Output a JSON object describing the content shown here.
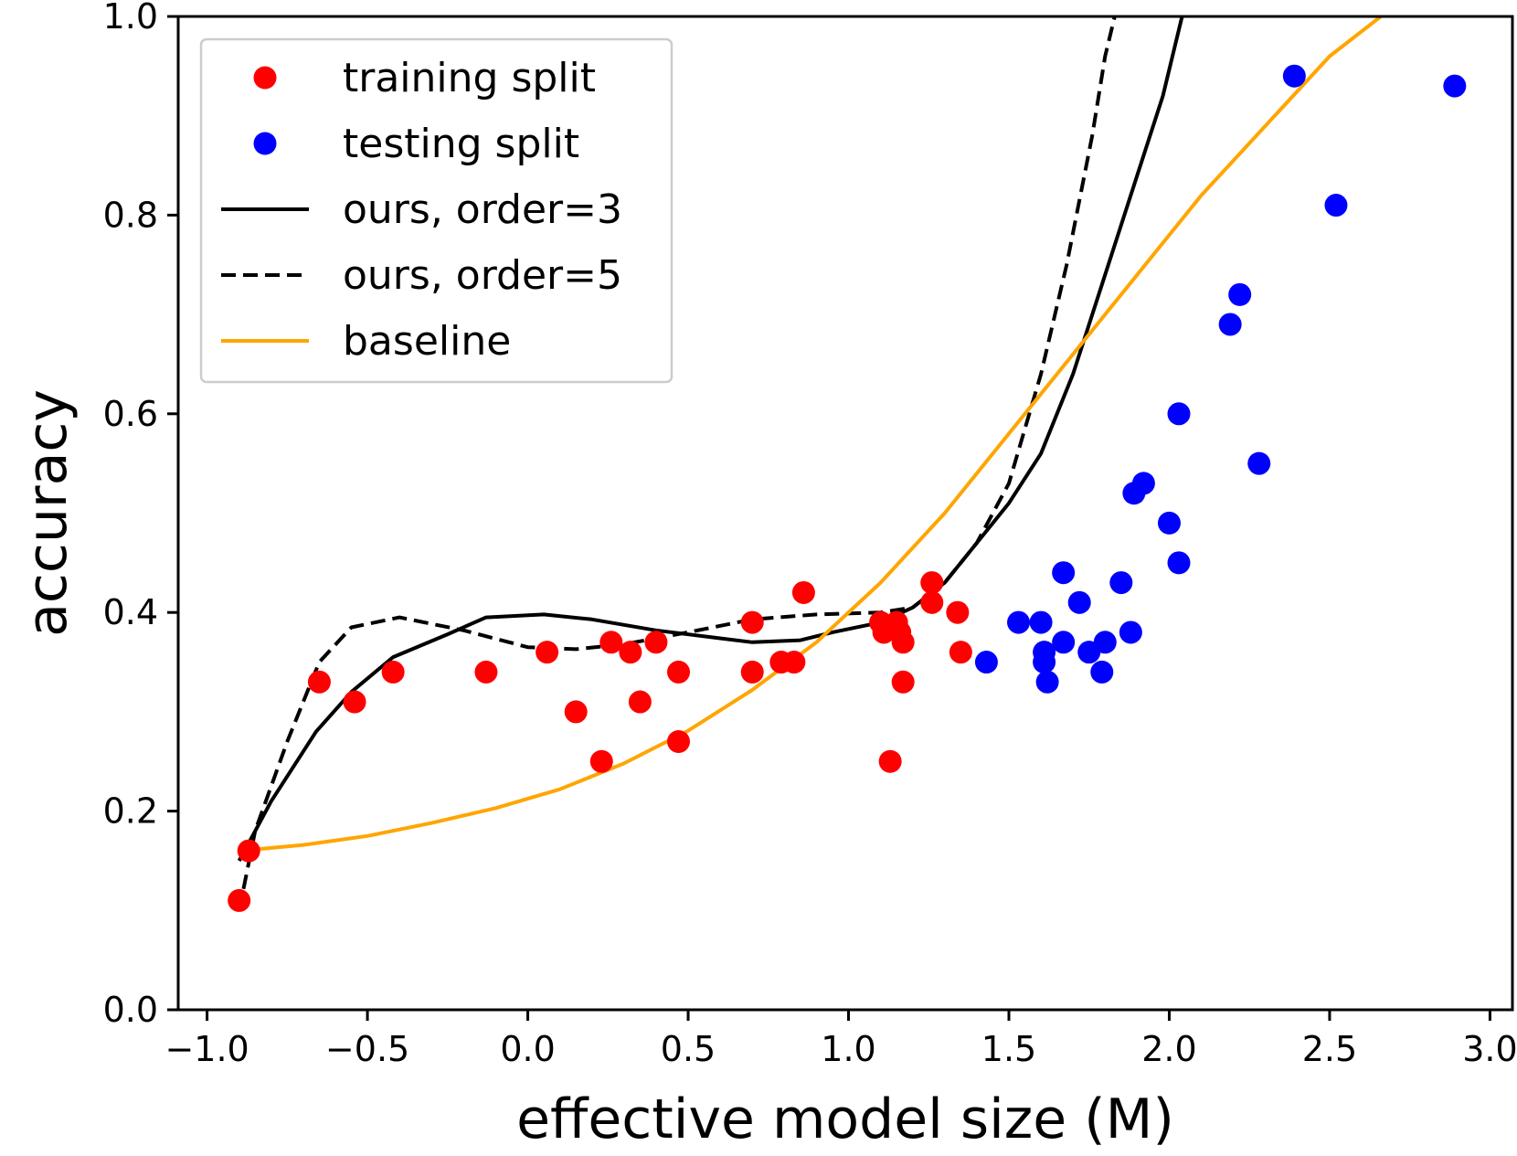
{
  "chart_data": {
    "type": "scatter",
    "title": "",
    "xlabel": "effective model size (M)",
    "ylabel": "accuracy",
    "xlim": [
      -1.09,
      3.07
    ],
    "ylim": [
      0.0,
      1.0
    ],
    "xticks": [
      -1.0,
      -0.5,
      0.0,
      0.5,
      1.0,
      1.5,
      2.0,
      2.5,
      3.0
    ],
    "xtick_labels": [
      "−1.0",
      "−0.5",
      "0.0",
      "0.5",
      "1.0",
      "1.5",
      "2.0",
      "2.5",
      "3.0"
    ],
    "yticks": [
      0.0,
      0.2,
      0.4,
      0.6,
      0.8,
      1.0
    ],
    "ytick_labels": [
      "0.0",
      "0.2",
      "0.4",
      "0.6",
      "0.8",
      "1.0"
    ],
    "grid": false,
    "legend_position": "top-left",
    "colors": {
      "training": "#ff0000",
      "testing": "#0000ff",
      "ours3": "#000000",
      "ours5": "#000000",
      "baseline": "#ffa500"
    },
    "series": [
      {
        "name": "training split",
        "kind": "scatter",
        "color_key": "training",
        "points": [
          [
            -0.9,
            0.11
          ],
          [
            -0.87,
            0.16
          ],
          [
            -0.65,
            0.33
          ],
          [
            -0.54,
            0.31
          ],
          [
            -0.42,
            0.34
          ],
          [
            -0.13,
            0.34
          ],
          [
            0.06,
            0.36
          ],
          [
            0.15,
            0.3
          ],
          [
            0.23,
            0.25
          ],
          [
            0.26,
            0.37
          ],
          [
            0.32,
            0.36
          ],
          [
            0.35,
            0.31
          ],
          [
            0.4,
            0.37
          ],
          [
            0.47,
            0.34
          ],
          [
            0.47,
            0.27
          ],
          [
            0.7,
            0.39
          ],
          [
            0.7,
            0.34
          ],
          [
            0.79,
            0.35
          ],
          [
            0.83,
            0.35
          ],
          [
            0.86,
            0.42
          ],
          [
            1.1,
            0.39
          ],
          [
            1.11,
            0.38
          ],
          [
            1.13,
            0.25
          ],
          [
            1.15,
            0.39
          ],
          [
            1.16,
            0.38
          ],
          [
            1.17,
            0.37
          ],
          [
            1.17,
            0.33
          ],
          [
            1.26,
            0.43
          ],
          [
            1.26,
            0.41
          ],
          [
            1.34,
            0.4
          ],
          [
            1.35,
            0.36
          ]
        ]
      },
      {
        "name": "testing split",
        "kind": "scatter",
        "color_key": "testing",
        "points": [
          [
            1.43,
            0.35
          ],
          [
            1.53,
            0.39
          ],
          [
            1.6,
            0.39
          ],
          [
            1.61,
            0.36
          ],
          [
            1.61,
            0.35
          ],
          [
            1.62,
            0.33
          ],
          [
            1.67,
            0.37
          ],
          [
            1.67,
            0.44
          ],
          [
            1.72,
            0.41
          ],
          [
            1.75,
            0.36
          ],
          [
            1.79,
            0.34
          ],
          [
            1.8,
            0.37
          ],
          [
            1.85,
            0.43
          ],
          [
            1.88,
            0.38
          ],
          [
            1.89,
            0.52
          ],
          [
            1.92,
            0.53
          ],
          [
            2.0,
            0.49
          ],
          [
            2.03,
            0.6
          ],
          [
            2.03,
            0.45
          ],
          [
            2.19,
            0.69
          ],
          [
            2.22,
            0.72
          ],
          [
            2.28,
            0.55
          ],
          [
            2.39,
            0.94
          ],
          [
            2.52,
            0.81
          ],
          [
            2.89,
            0.93
          ]
        ]
      },
      {
        "name": "ours, order=3",
        "kind": "line",
        "style": "solid",
        "color_key": "ours3",
        "points": [
          [
            -0.9,
            0.15
          ],
          [
            -0.8,
            0.21
          ],
          [
            -0.66,
            0.28
          ],
          [
            -0.55,
            0.32
          ],
          [
            -0.42,
            0.355
          ],
          [
            -0.25,
            0.378
          ],
          [
            -0.13,
            0.395
          ],
          [
            0.05,
            0.398
          ],
          [
            0.2,
            0.393
          ],
          [
            0.4,
            0.382
          ],
          [
            0.6,
            0.374
          ],
          [
            0.7,
            0.37
          ],
          [
            0.85,
            0.372
          ],
          [
            0.95,
            0.38
          ],
          [
            1.1,
            0.39
          ],
          [
            1.2,
            0.405
          ],
          [
            1.3,
            0.43
          ],
          [
            1.4,
            0.47
          ],
          [
            1.5,
            0.51
          ],
          [
            1.6,
            0.56
          ],
          [
            1.7,
            0.64
          ],
          [
            1.8,
            0.74
          ],
          [
            1.9,
            0.84
          ],
          [
            1.98,
            0.92
          ],
          [
            2.04,
            1.0
          ]
        ]
      },
      {
        "name": "ours, order=5",
        "kind": "line",
        "style": "dashed",
        "color_key": "ours5",
        "points": [
          [
            -0.9,
            0.1
          ],
          [
            -0.85,
            0.18
          ],
          [
            -0.75,
            0.27
          ],
          [
            -0.65,
            0.35
          ],
          [
            -0.55,
            0.385
          ],
          [
            -0.4,
            0.395
          ],
          [
            -0.2,
            0.382
          ],
          [
            0.0,
            0.365
          ],
          [
            0.15,
            0.363
          ],
          [
            0.3,
            0.368
          ],
          [
            0.5,
            0.38
          ],
          [
            0.7,
            0.393
          ],
          [
            0.9,
            0.398
          ],
          [
            1.1,
            0.4
          ],
          [
            1.2,
            0.405
          ],
          [
            1.3,
            0.43
          ],
          [
            1.4,
            0.47
          ],
          [
            1.5,
            0.53
          ],
          [
            1.6,
            0.64
          ],
          [
            1.68,
            0.75
          ],
          [
            1.76,
            0.88
          ],
          [
            1.8,
            0.96
          ],
          [
            1.83,
            1.0
          ]
        ]
      },
      {
        "name": "baseline",
        "kind": "line",
        "style": "solid",
        "color_key": "baseline",
        "points": [
          [
            -0.9,
            0.16
          ],
          [
            -0.7,
            0.166
          ],
          [
            -0.5,
            0.175
          ],
          [
            -0.3,
            0.188
          ],
          [
            -0.1,
            0.203
          ],
          [
            0.1,
            0.222
          ],
          [
            0.3,
            0.248
          ],
          [
            0.5,
            0.281
          ],
          [
            0.7,
            0.322
          ],
          [
            0.9,
            0.37
          ],
          [
            1.1,
            0.43
          ],
          [
            1.3,
            0.5
          ],
          [
            1.5,
            0.58
          ],
          [
            1.7,
            0.66
          ],
          [
            1.9,
            0.74
          ],
          [
            2.1,
            0.82
          ],
          [
            2.3,
            0.89
          ],
          [
            2.5,
            0.96
          ],
          [
            2.7,
            1.01
          ]
        ]
      }
    ]
  }
}
